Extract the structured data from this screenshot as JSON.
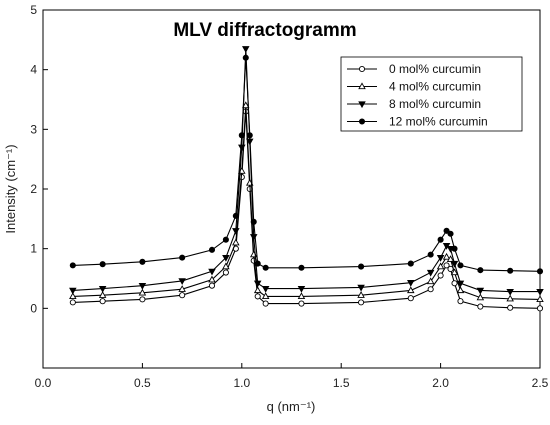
{
  "chart_data": {
    "type": "line",
    "title": "MLV diffractogramm",
    "xlabel": "q (nm⁻¹)",
    "ylabel": "Intensity (cm⁻¹)",
    "xlim": [
      0.0,
      2.5
    ],
    "ylim": [
      -1,
      5
    ],
    "xticks": [
      "0.0",
      "0.5",
      "1.0",
      "1.5",
      "2.0",
      "2.5"
    ],
    "yticks": [
      "0",
      "1",
      "2",
      "3",
      "4",
      "5"
    ],
    "grid": false,
    "legend_position": "top-right",
    "x": [
      0.15,
      0.3,
      0.5,
      0.7,
      0.85,
      0.92,
      0.97,
      1.0,
      1.02,
      1.04,
      1.06,
      1.08,
      1.12,
      1.3,
      1.6,
      1.85,
      1.95,
      2.0,
      2.03,
      2.05,
      2.07,
      2.1,
      2.2,
      2.35,
      2.5
    ],
    "series": [
      {
        "name": "0 mol% curcumin",
        "marker": "circle-open",
        "values": [
          0.1,
          0.12,
          0.15,
          0.22,
          0.38,
          0.6,
          1.0,
          2.2,
          3.3,
          2.0,
          0.8,
          0.2,
          0.08,
          0.08,
          0.1,
          0.17,
          0.32,
          0.55,
          0.72,
          0.66,
          0.42,
          0.12,
          0.03,
          0.01,
          0.0
        ]
      },
      {
        "name": "4 mol% curcumin",
        "marker": "triangle-open",
        "values": [
          0.2,
          0.22,
          0.26,
          0.32,
          0.48,
          0.7,
          1.1,
          2.3,
          3.4,
          2.1,
          0.9,
          0.3,
          0.2,
          0.2,
          0.22,
          0.3,
          0.45,
          0.7,
          0.86,
          0.82,
          0.6,
          0.3,
          0.18,
          0.16,
          0.15
        ]
      },
      {
        "name": "8 mol% curcumin",
        "marker": "triangle-down-filled",
        "values": [
          0.3,
          0.33,
          0.38,
          0.46,
          0.62,
          0.85,
          1.3,
          2.7,
          4.35,
          2.8,
          1.2,
          0.42,
          0.33,
          0.33,
          0.35,
          0.43,
          0.6,
          0.85,
          1.05,
          1.0,
          0.75,
          0.42,
          0.3,
          0.28,
          0.28
        ]
      },
      {
        "name": "12 mol% curcumin",
        "marker": "circle-filled",
        "values": [
          0.72,
          0.74,
          0.78,
          0.85,
          0.98,
          1.15,
          1.55,
          2.9,
          4.2,
          2.9,
          1.45,
          0.75,
          0.68,
          0.68,
          0.7,
          0.75,
          0.9,
          1.15,
          1.3,
          1.25,
          1.0,
          0.72,
          0.64,
          0.63,
          0.62
        ]
      }
    ]
  }
}
